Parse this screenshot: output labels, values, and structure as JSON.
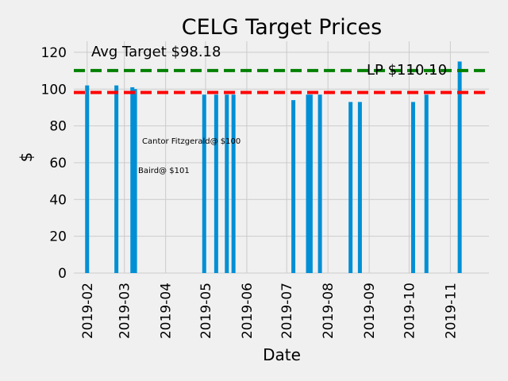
{
  "chart_data": {
    "type": "bar",
    "title": "CELG Target Prices",
    "xlabel": "Date",
    "ylabel": "$",
    "xlim": [
      "2019-01-22",
      "2019-11-30"
    ],
    "ylim": [
      0,
      126
    ],
    "grid": true,
    "x_ticks": [
      "2019-02",
      "2019-03",
      "2019-04",
      "2019-05",
      "2019-06",
      "2019-07",
      "2019-08",
      "2019-09",
      "2019-10",
      "2019-11"
    ],
    "y_ticks": [
      0,
      20,
      40,
      60,
      80,
      100,
      120
    ],
    "bar_color": "#008fd5",
    "series": [
      {
        "points": [
          {
            "date": "2019-02-01",
            "value": 102
          },
          {
            "date": "2019-02-23",
            "value": 102
          },
          {
            "date": "2019-03-07",
            "value": 101
          },
          {
            "date": "2019-03-09",
            "value": 100
          },
          {
            "date": "2019-04-30",
            "value": 97
          },
          {
            "date": "2019-05-09",
            "value": 97
          },
          {
            "date": "2019-05-17",
            "value": 97
          },
          {
            "date": "2019-05-22",
            "value": 97
          },
          {
            "date": "2019-07-06",
            "value": 94
          },
          {
            "date": "2019-07-17",
            "value": 97
          },
          {
            "date": "2019-07-19",
            "value": 97
          },
          {
            "date": "2019-07-26",
            "value": 97
          },
          {
            "date": "2019-08-18",
            "value": 93
          },
          {
            "date": "2019-08-25",
            "value": 93
          },
          {
            "date": "2019-10-04",
            "value": 93
          },
          {
            "date": "2019-10-14",
            "value": 97
          },
          {
            "date": "2019-11-08",
            "value": 115
          }
        ]
      }
    ],
    "reference_lines": [
      {
        "value": 98.18,
        "color": "#ff0000",
        "style": "dashed"
      },
      {
        "value": 110.1,
        "color": "#008000",
        "style": "dashed"
      }
    ],
    "annotations": {
      "avg_target": "Avg Target $98.18",
      "lp": "LP $110.10",
      "cantor": "Cantor Fitzgerald@ $100",
      "baird": "Baird@ $101"
    }
  },
  "colors": {
    "background": "#f0f0f0",
    "grid": "#cbcbcb",
    "bar": "#008fd5",
    "avg_line": "#ff0000",
    "lp_line": "#008000"
  }
}
